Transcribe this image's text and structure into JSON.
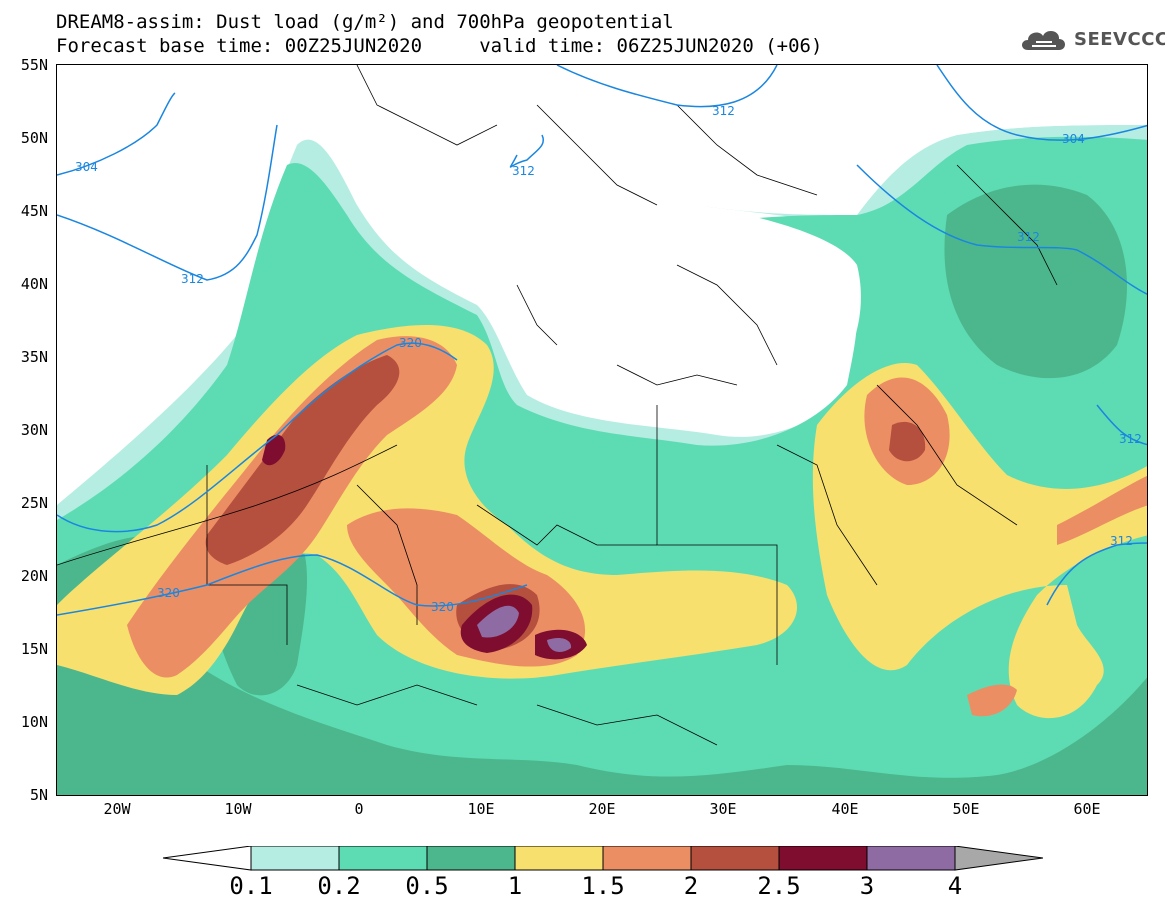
{
  "title": {
    "line1": "DREAM8-assim: Dust load (g/m²) and 700hPa geopotential",
    "line2": "Forecast base time: 00Z25JUN2020     valid time: 06Z25JUN2020 (+06)"
  },
  "logo": {
    "text": "SEEVCCC",
    "icon": "cloud-icon"
  },
  "axes": {
    "lat_labels": [
      "55N",
      "50N",
      "45N",
      "40N",
      "35N",
      "30N",
      "25N",
      "20N",
      "15N",
      "10N",
      "5N"
    ],
    "lon_labels": [
      "20W",
      "10W",
      "0",
      "10E",
      "20E",
      "30E",
      "40E",
      "50E",
      "60E"
    ]
  },
  "contour_labels": [
    "304",
    "312",
    "320",
    "312",
    "304",
    "312",
    "320",
    "312",
    "320",
    "312",
    "312"
  ],
  "colorbar": {
    "labels": [
      "0.1",
      "0.2",
      "0.5",
      "1",
      "1.5",
      "2",
      "2.5",
      "3",
      "4"
    ],
    "colors": [
      "#ffffff",
      "#b6ede3",
      "#5ddcb4",
      "#4cb78d",
      "#f7e06e",
      "#ec8e63",
      "#b54f3e",
      "#7e0d2f",
      "#8f6ba4",
      "#a8a8a8"
    ]
  },
  "colors": {
    "contour": "#1a86e0",
    "dust_levels": [
      "#b6ede3",
      "#5ddcb4",
      "#4cb78d",
      "#f7e06e",
      "#ec8e63",
      "#b54f3e",
      "#7e0d2f",
      "#8f6ba4",
      "#a8a8a8"
    ]
  }
}
